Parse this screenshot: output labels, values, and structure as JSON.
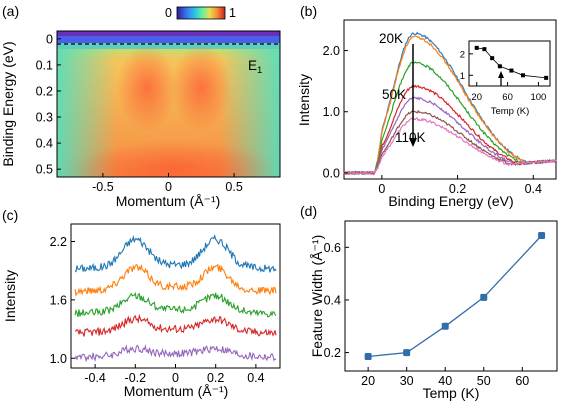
{
  "colors": {
    "series_temps": [
      "#2f7fc1",
      "#ff7f0e",
      "#2ca02c",
      "#d62728",
      "#9467bd",
      "#8c564b",
      "#e377c2"
    ],
    "waterfall": [
      "#1f77b4",
      "#ff7f0e",
      "#2ca02c",
      "#d62728",
      "#9467bd"
    ],
    "marker_d": "#2f6ea8"
  },
  "chart_data": [
    {
      "id": "a",
      "panel_label": "(a)",
      "type": "heatmap",
      "xlabel": "Momentum (Å⁻¹)",
      "ylabel": "Binding Energy (eV)",
      "xlim": [
        -0.85,
        0.85
      ],
      "ylim": [
        -0.03,
        0.53
      ],
      "y_inverted": true,
      "xticks": [
        "-0.5",
        "0",
        "0.5"
      ],
      "yticks": [
        "0",
        "0.1",
        "0.2",
        "0.3",
        "0.4",
        "0.5"
      ],
      "colorbar": {
        "min_label": "0",
        "max_label": "1",
        "colormap": "rainbow"
      },
      "dashed_line_energy": 0.02,
      "annotation": "E",
      "annotation_sub": "1"
    },
    {
      "id": "b",
      "panel_label": "(b)",
      "type": "line",
      "xlabel": "Binding Energy (eV)",
      "ylabel": "Intensity",
      "xlim": [
        -0.1,
        0.46
      ],
      "ylim": [
        -0.1,
        2.5
      ],
      "xticks": [
        "0",
        "0.2",
        "0.4"
      ],
      "yticks": [
        "0.0",
        "1.0",
        "2.0"
      ],
      "labels": [
        "20K",
        "50K",
        "110K"
      ],
      "peaks": [
        2.28,
        2.22,
        1.8,
        1.42,
        1.22,
        1.0,
        0.88
      ],
      "inset": {
        "type": "line",
        "xlabel": "Temp (K)",
        "xlim": [
          10,
          115
        ],
        "ylim": [
          0.5,
          2.6
        ],
        "xticks": [
          "20",
          "60",
          "100"
        ],
        "yticks": [
          "1",
          "2"
        ],
        "x": [
          20,
          30,
          40,
          50,
          65,
          80,
          110
        ],
        "y": [
          2.28,
          2.22,
          1.8,
          1.42,
          1.22,
          1.0,
          0.88
        ]
      }
    },
    {
      "id": "c",
      "panel_label": "(c)",
      "type": "line",
      "xlabel": "Momentum (Å⁻¹)",
      "ylabel": "Intensity",
      "xlim": [
        -0.52,
        0.52
      ],
      "ylim": [
        0.9,
        2.38
      ],
      "xticks": [
        "-0.4",
        "-0.2",
        "0",
        "0.2",
        "0.4"
      ],
      "yticks": [
        "1.0",
        "1.6",
        "2.2"
      ],
      "offsets": [
        1.96,
        1.73,
        1.5,
        1.3,
        1.05
      ],
      "amplitudes": [
        0.28,
        0.22,
        0.16,
        0.12,
        0.07
      ]
    },
    {
      "id": "d",
      "panel_label": "(d)",
      "type": "line",
      "xlabel": "Temp (K)",
      "ylabel": "Feature Width (Å⁻¹)",
      "xlim": [
        14,
        69
      ],
      "ylim": [
        0.13,
        0.7
      ],
      "xticks": [
        "20",
        "30",
        "40",
        "50",
        "60"
      ],
      "yticks": [
        "0.2",
        "0.4",
        "0.6"
      ],
      "x": [
        20,
        30,
        40,
        50,
        65
      ],
      "y": [
        0.185,
        0.2,
        0.3,
        0.41,
        0.645
      ]
    }
  ]
}
